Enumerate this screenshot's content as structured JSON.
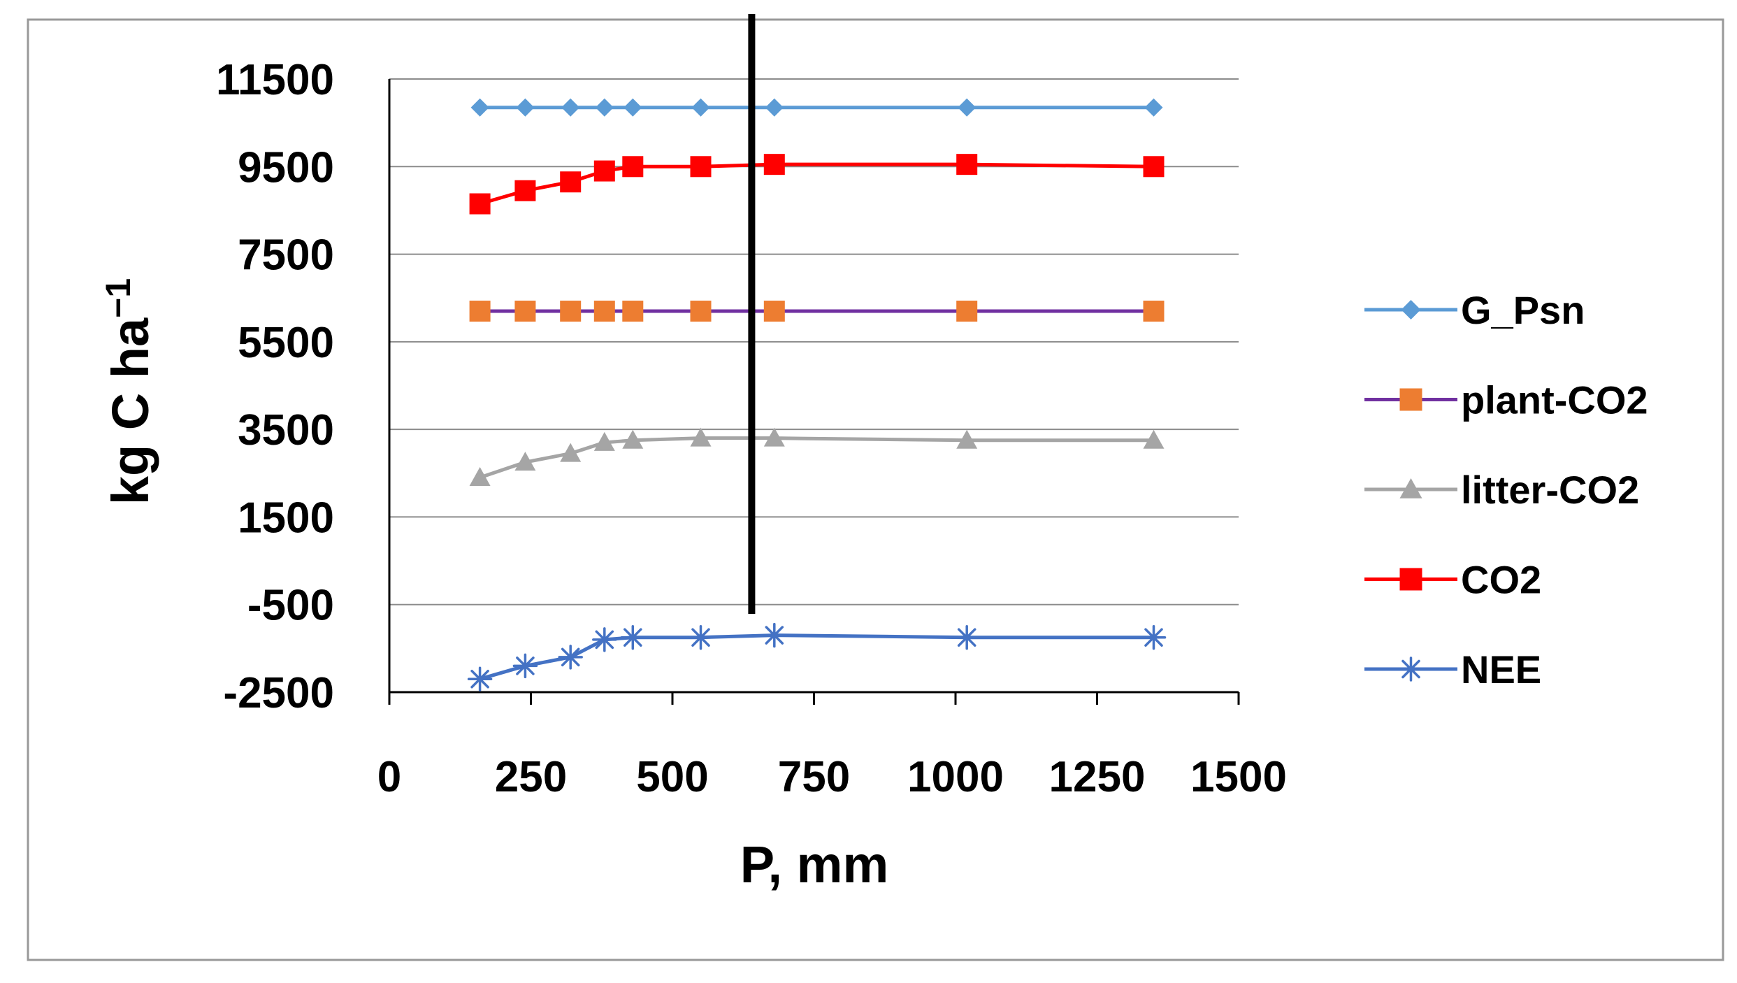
{
  "chart_data": {
    "type": "line",
    "title": "",
    "xlabel": "P, mm",
    "ylabel": "kg C ha",
    "ylabel_superscript": "−1",
    "xlim": [
      0,
      1500
    ],
    "ylim": [
      -2500,
      11500
    ],
    "x_ticks": [
      0,
      250,
      500,
      750,
      1000,
      1250,
      1500
    ],
    "y_ticks": [
      -2500,
      -500,
      1500,
      3500,
      5500,
      7500,
      9500,
      11500
    ],
    "x": [
      160,
      240,
      320,
      380,
      430,
      550,
      680,
      1020,
      1350
    ],
    "vertical_line_x": 640,
    "grid": true,
    "legend_position": "right",
    "series": [
      {
        "name": "G_Psn",
        "color": "#5B9BD5",
        "marker": "diamond",
        "values": [
          10850,
          10850,
          10850,
          10850,
          10850,
          10850,
          10850,
          10850,
          10850
        ]
      },
      {
        "name": "plant-CO2",
        "color": "#7030A0",
        "marker_color": "#ED7D31",
        "marker": "square",
        "values": [
          6200,
          6200,
          6200,
          6200,
          6200,
          6200,
          6200,
          6200,
          6200
        ]
      },
      {
        "name": "litter-CO2",
        "color": "#A5A5A5",
        "marker": "triangle",
        "values": [
          2400,
          2750,
          2950,
          3200,
          3250,
          3300,
          3300,
          3250,
          3250
        ]
      },
      {
        "name": "CO2",
        "color": "#FF0000",
        "marker": "square",
        "values": [
          8650,
          8950,
          9150,
          9400,
          9500,
          9500,
          9550,
          9550,
          9500
        ]
      },
      {
        "name": "NEE",
        "color": "#4472C4",
        "marker": "asterisk",
        "values": [
          -2200,
          -1900,
          -1700,
          -1300,
          -1250,
          -1250,
          -1200,
          -1250,
          -1250
        ]
      }
    ]
  }
}
